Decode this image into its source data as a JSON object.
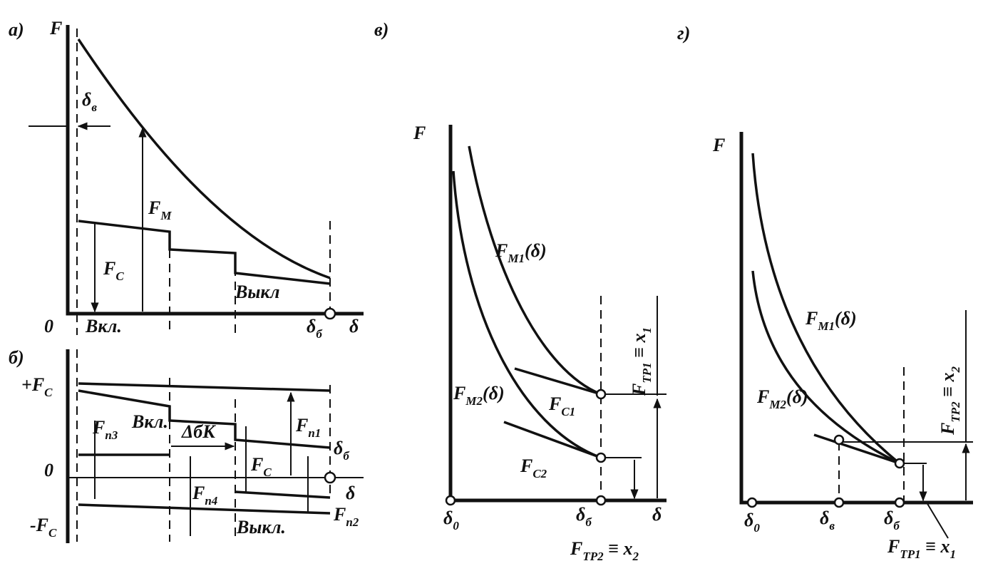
{
  "panel_a": {
    "label": "а)",
    "f_axis": "F",
    "delta_v": {
      "main": "δ",
      "sub": "в"
    },
    "fm": {
      "main": "F",
      "sub": "M"
    },
    "fc": {
      "main": "F",
      "sub": "C"
    },
    "on": "Вкл.",
    "off": "Выкл",
    "zero": "0",
    "delta_b": {
      "main": "δ",
      "sub": "б"
    },
    "delta": "δ"
  },
  "panel_b": {
    "label": "б)",
    "plus_fc": {
      "main": "+F",
      "sub": "C"
    },
    "minus_fc": {
      "main": "-F",
      "sub": "C"
    },
    "zero": "0",
    "fp3": {
      "main": "F",
      "sub": "п3"
    },
    "on": "Вкл.",
    "dbk": "ΔбК",
    "fp1": {
      "main": "F",
      "sub": "п1"
    },
    "delta_b": {
      "main": "δ",
      "sub": "б"
    },
    "fc": {
      "main": "F",
      "sub": "C"
    },
    "fp4": {
      "main": "F",
      "sub": "п4"
    },
    "delta": "δ",
    "off": "Выкл.",
    "fp2": {
      "main": "F",
      "sub": "п2"
    }
  },
  "panel_c": {
    "label": "в)",
    "f_axis": "F",
    "fm1": {
      "main": "F",
      "sub": "M1",
      "tail": "(δ)"
    },
    "fm2": {
      "main": "F",
      "sub": "M2",
      "tail": "(δ)"
    },
    "fc1": {
      "main": "F",
      "sub": "C1"
    },
    "fc2": {
      "main": "F",
      "sub": "C2"
    },
    "ftr1": {
      "main": "F",
      "sub": "ТР1",
      "rel": " ≡ x",
      "rel_sub": "1"
    },
    "delta_0": {
      "main": "δ",
      "sub": "0"
    },
    "delta_b": {
      "main": "δ",
      "sub": "б"
    },
    "delta": "δ",
    "ftr2": {
      "main": "F",
      "sub": "ТР2",
      "rel": " ≡ x",
      "rel_sub": "2"
    }
  },
  "panel_d": {
    "label": "г)",
    "f_axis": "F",
    "fm1": {
      "main": "F",
      "sub": "M1",
      "tail": "(δ)"
    },
    "fm2": {
      "main": "F",
      "sub": "M2",
      "tail": "(δ)"
    },
    "ftr2": {
      "main": "F",
      "sub": "ТР2",
      "rel": " ≡ x",
      "rel_sub": "2"
    },
    "delta_0": {
      "main": "δ",
      "sub": "0"
    },
    "delta_v": {
      "main": "δ",
      "sub": "в"
    },
    "delta_b": {
      "main": "δ",
      "sub": "б"
    },
    "ftr1": {
      "main": "F",
      "sub": "ТР1",
      "rel": " ≡ x",
      "rel_sub": "1"
    }
  }
}
